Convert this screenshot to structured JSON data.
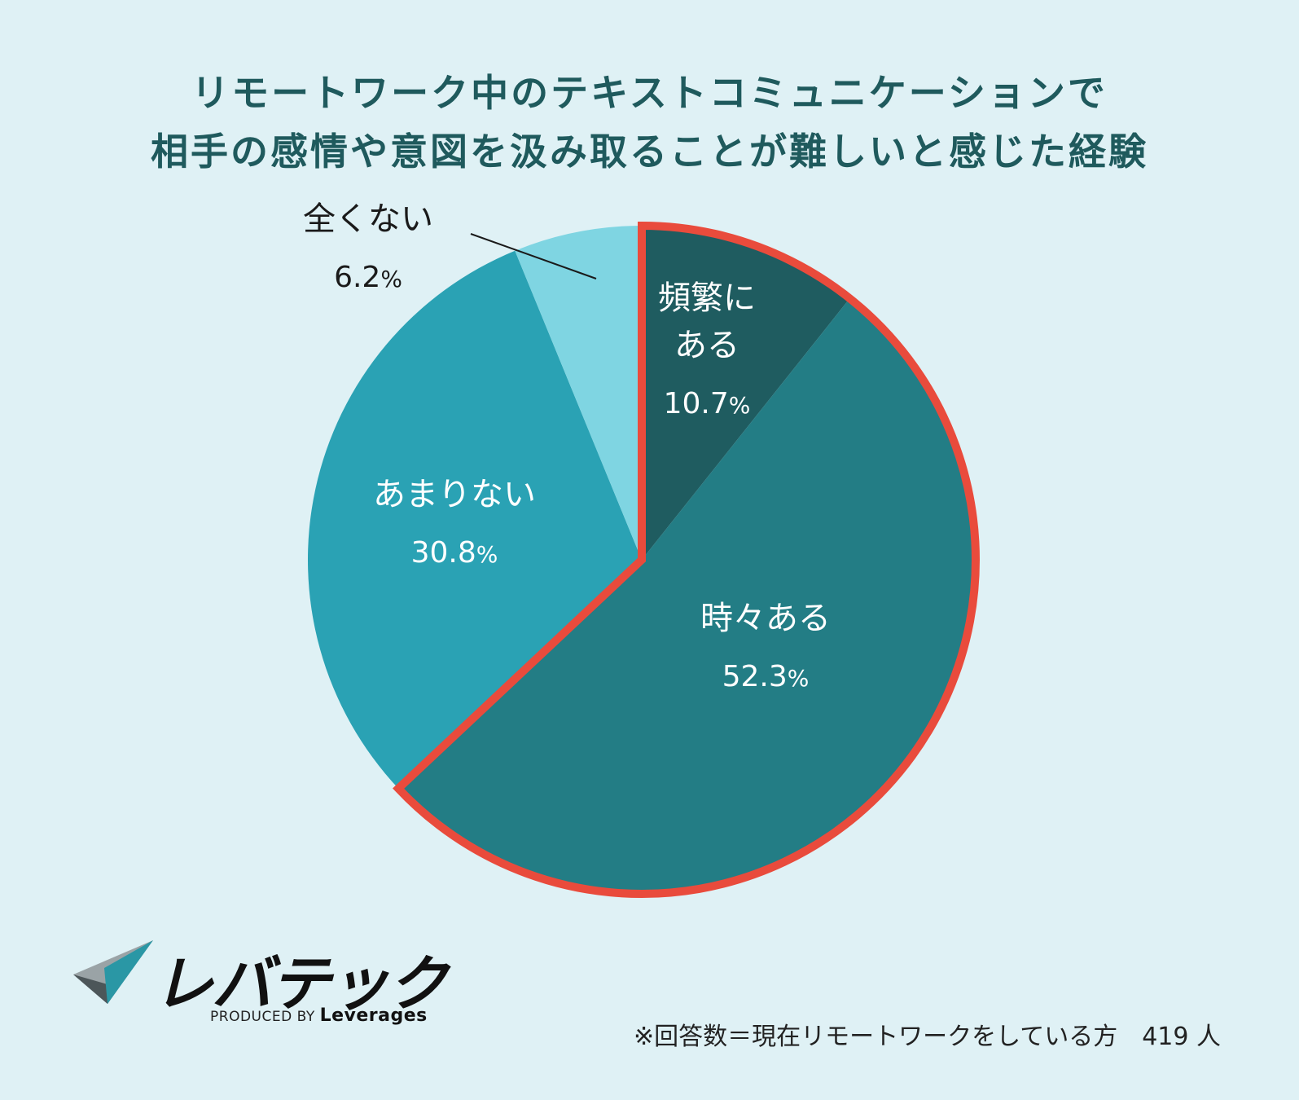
{
  "title": {
    "line1": "リモートワーク中のテキストコミュニケーションで",
    "line2": "相手の感情や意図を汲み取ることが難しいと感じた経験"
  },
  "chart_data": {
    "type": "pie",
    "slices": [
      {
        "label_line1": "頻繁に",
        "label_line2": "ある",
        "value": 10.7,
        "color": "#1f5c60",
        "highlighted": true
      },
      {
        "label_line1": "時々ある",
        "label_line2": "",
        "value": 52.3,
        "color": "#237d85",
        "highlighted": true
      },
      {
        "label_line1": "あまりない",
        "label_line2": "",
        "value": 30.8,
        "color": "#2aa2b4",
        "highlighted": false
      },
      {
        "label_line1": "全くない",
        "label_line2": "",
        "value": 6.2,
        "color": "#7fd5e2",
        "highlighted": false
      }
    ],
    "unit": "%",
    "highlight_color": "#e94b3c"
  },
  "logo": {
    "name": "レバテック",
    "produced_by": "PRODUCED BY",
    "brand": "Leverages"
  },
  "footnote": "※回答数＝現在リモートワークをしている方　419 人"
}
